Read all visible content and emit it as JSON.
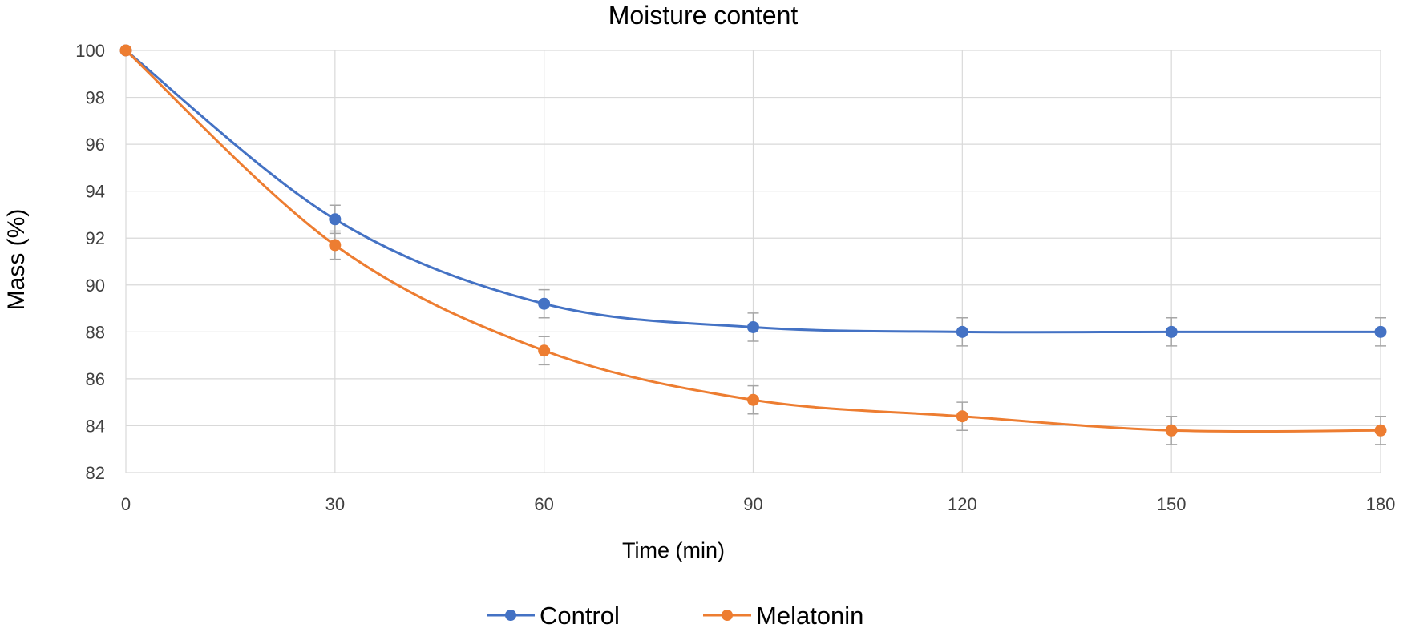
{
  "chart_data": {
    "type": "line",
    "title": "Moisture content",
    "xlabel": "Time (min)",
    "ylabel": "Mass  (%)",
    "x": [
      0,
      30,
      60,
      90,
      120,
      150,
      180
    ],
    "xlim": [
      0,
      180
    ],
    "ylim": [
      82,
      100
    ],
    "yticks": [
      82,
      84,
      86,
      88,
      90,
      92,
      94,
      96,
      98,
      100
    ],
    "grid": true,
    "legend_position": "bottom",
    "series": [
      {
        "name": "Control",
        "color": "#4472c4",
        "values": [
          100,
          92.8,
          89.2,
          88.2,
          88.0,
          88.0,
          88.0
        ],
        "errors": [
          0,
          0.6,
          0.6,
          0.6,
          0.6,
          0.6,
          0.6
        ]
      },
      {
        "name": "Melatonin",
        "color": "#ed7d31",
        "values": [
          100,
          91.7,
          87.2,
          85.1,
          84.4,
          83.8,
          83.8
        ],
        "errors": [
          0,
          0.6,
          0.6,
          0.6,
          0.6,
          0.6,
          0.6
        ]
      }
    ]
  }
}
